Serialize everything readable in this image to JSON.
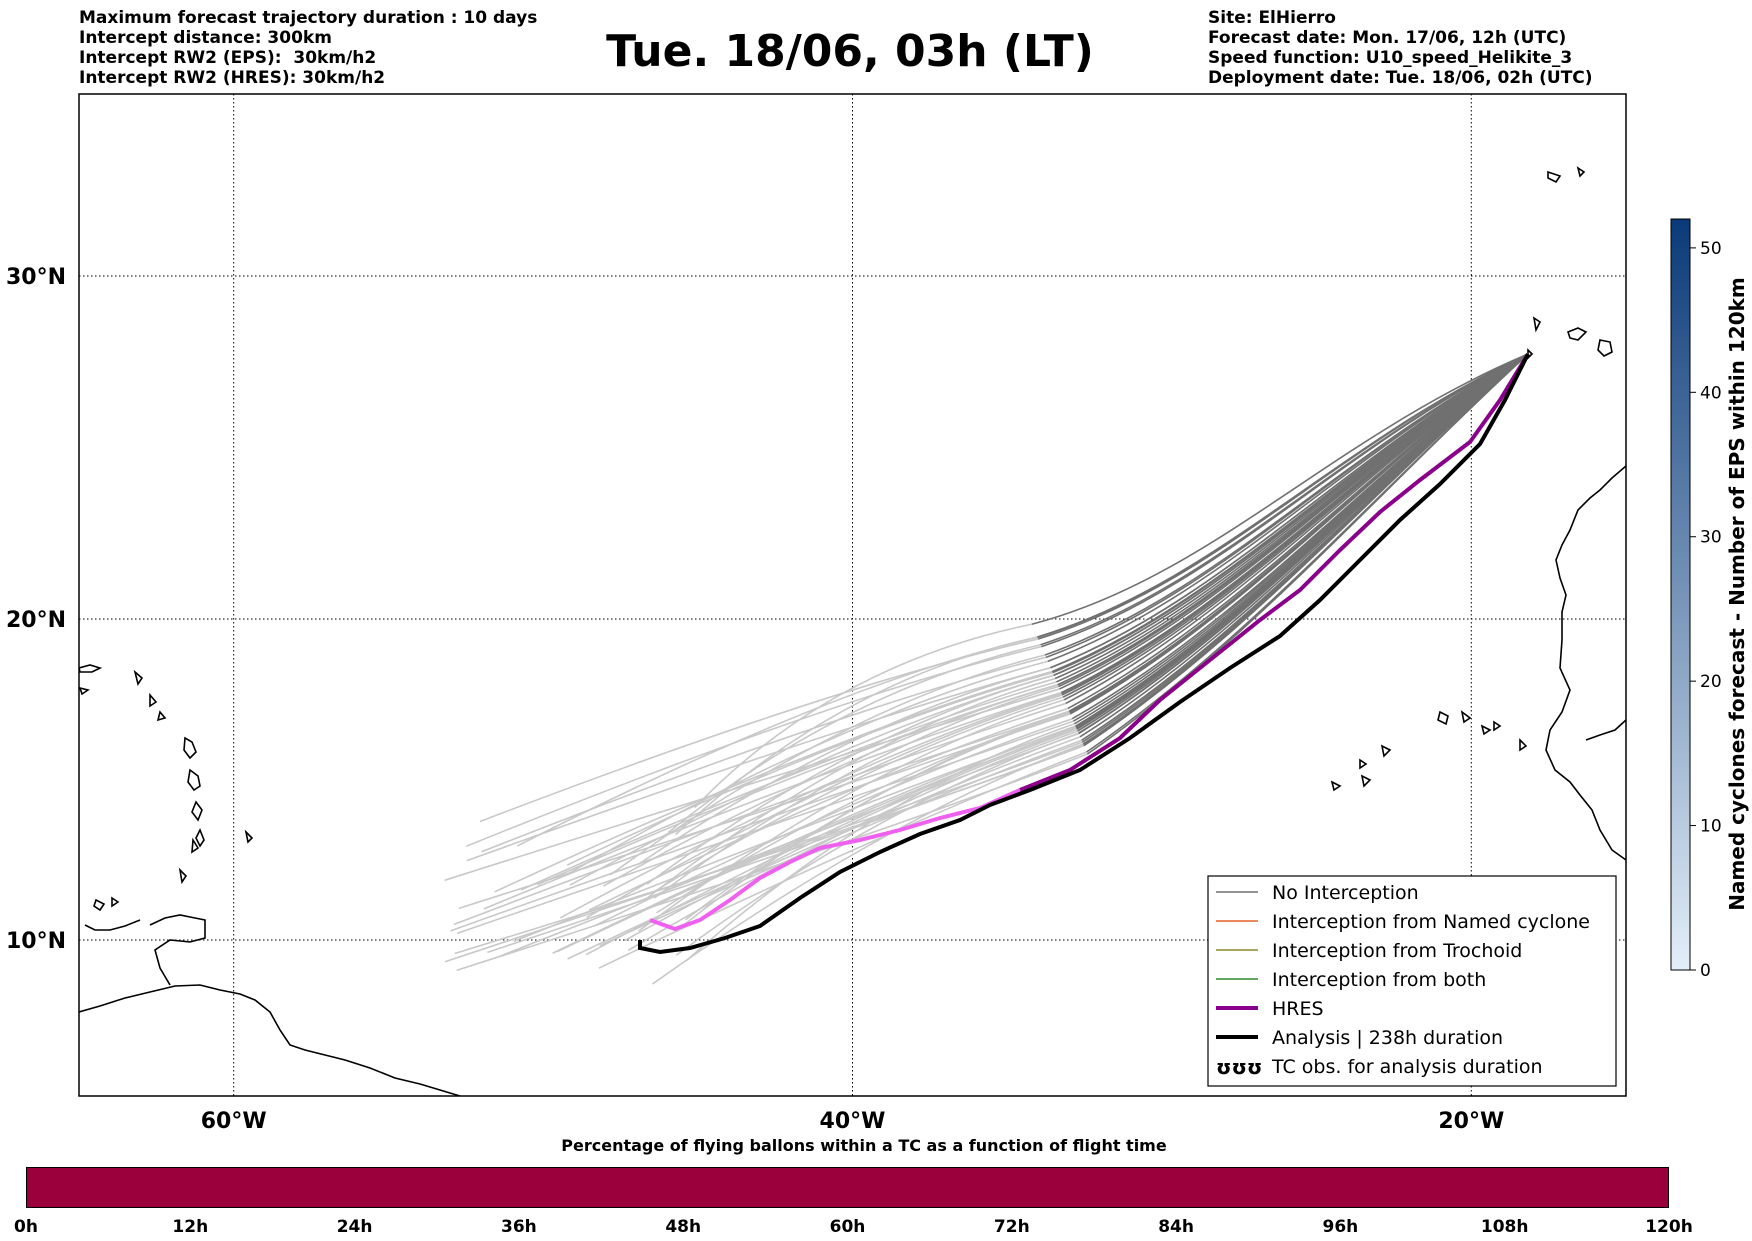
{
  "header": {
    "left_lines": [
      "Maximum forecast trajectory duration : 10 days",
      "Intercept distance: 300km",
      "Intercept RW2 (EPS):  30km/h2",
      "Intercept RW2 (HRES): 30km/h2"
    ],
    "title": "Tue. 18/06, 03h (LT)",
    "right_lines": [
      "Site: ElHierro",
      "Forecast date: Mon. 17/06, 12h (UTC)",
      "Speed function: U10_speed_Helikite_3",
      "Deployment date: Tue. 18/06, 02h (UTC)"
    ]
  },
  "map": {
    "lat_labels": [
      "30°N",
      "20°N",
      "10°N"
    ],
    "lon_labels": [
      "60°W",
      "40°W",
      "20°W"
    ],
    "extent": {
      "lon_min": -65,
      "lon_max": -15,
      "lat_min": 5.4,
      "lat_max": 34.7
    },
    "graticule_lats": [
      30,
      20,
      10
    ],
    "graticule_lons": [
      -60,
      -40,
      -20
    ],
    "site": {
      "name": "ElHierro",
      "lon": -18.0,
      "lat": 27.7
    },
    "colors": {
      "no_interception": "#707070",
      "eps_far": "#c8c8c8",
      "named_cyclone": "#e8622a",
      "trochoid": "#8a8a2e",
      "both": "#2e8b2e",
      "hres": "#8b008b",
      "hres_far": "#f060f0",
      "analysis": "#000000"
    }
  },
  "legend": {
    "items": [
      {
        "label": "No Interception",
        "color": "#707070",
        "style": "thin"
      },
      {
        "label": "Interception from Named cyclone",
        "color": "#e8622a",
        "style": "thin"
      },
      {
        "label": "Interception from Trochoid",
        "color": "#8a8a2e",
        "style": "thin"
      },
      {
        "label": "Interception from both",
        "color": "#2e8b2e",
        "style": "thin"
      },
      {
        "label": "HRES",
        "color": "#8b008b",
        "style": "thick"
      },
      {
        "label": "Analysis | 238h duration",
        "color": "#000000",
        "style": "thick"
      },
      {
        "label": "TC obs. for analysis duration",
        "color": "#000000",
        "style": "symbol",
        "symbol": "ʊʊʊ"
      }
    ]
  },
  "colorbar": {
    "label": "Named cyclones forecast - Number of EPS within 120km",
    "ticks": [
      "0",
      "10",
      "20",
      "30",
      "40",
      "50"
    ],
    "min": 0,
    "max": 52,
    "color_low": "#e3eef8",
    "color_high": "#0a3a78"
  },
  "flight_bar": {
    "title": "Percentage of flying ballons within a TC as a function of flight time",
    "ticks": [
      "0h",
      "12h",
      "24h",
      "36h",
      "48h",
      "60h",
      "72h",
      "84h",
      "96h",
      "108h",
      "120h"
    ],
    "fill_color": "#9c003c"
  }
}
